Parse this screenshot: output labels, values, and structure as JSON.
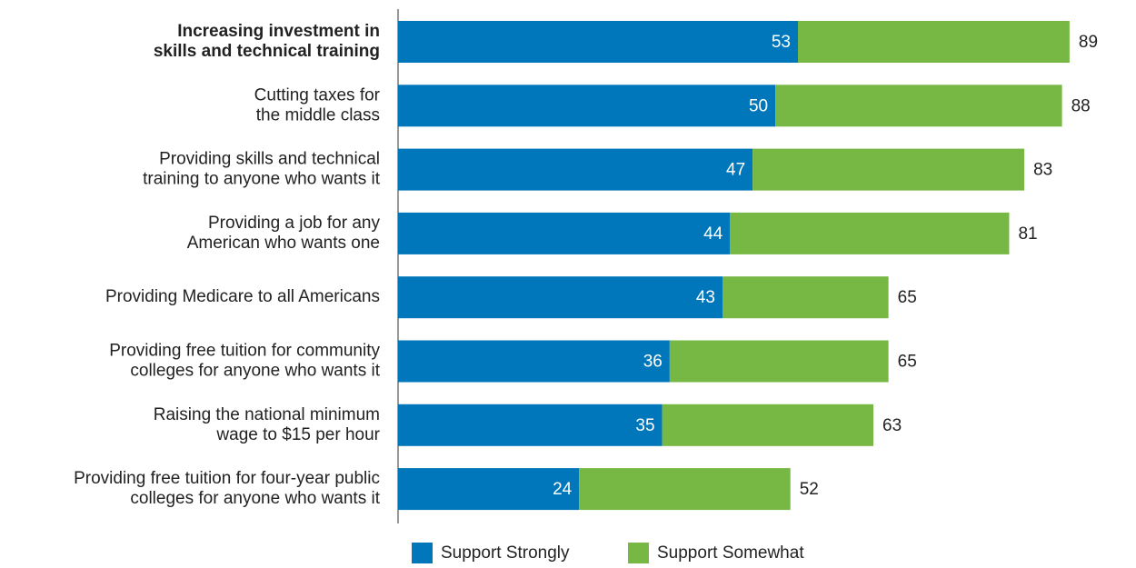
{
  "chart_data": {
    "type": "stacked-bar-horizontal",
    "categories": [
      "Increasing investment in\nskills and technical training",
      "Cutting taxes for\nthe middle class",
      "Providing skills and technical\ntraining to anyone who wants it",
      "Providing a job for any\nAmerican who wants one",
      "Providing Medicare to all Americans",
      "Providing free tuition for community\ncolleges for anyone who wants it",
      "Raising the national minimum\nwage to $15 per hour",
      "Providing free tuition for four-year public\ncolleges for anyone who wants it"
    ],
    "series": [
      {
        "name": "Support Strongly",
        "color": "#0077bb",
        "values": [
          53,
          50,
          47,
          44,
          43,
          36,
          35,
          24
        ]
      },
      {
        "name": "Support Somewhat",
        "color": "#76b843",
        "values": [
          36,
          38,
          36,
          37,
          22,
          29,
          28,
          28
        ]
      }
    ],
    "totals": [
      89,
      88,
      83,
      81,
      65,
      65,
      63,
      52
    ],
    "xlim": [
      0,
      96
    ],
    "highlight_index": 0,
    "legend": "bottom"
  }
}
